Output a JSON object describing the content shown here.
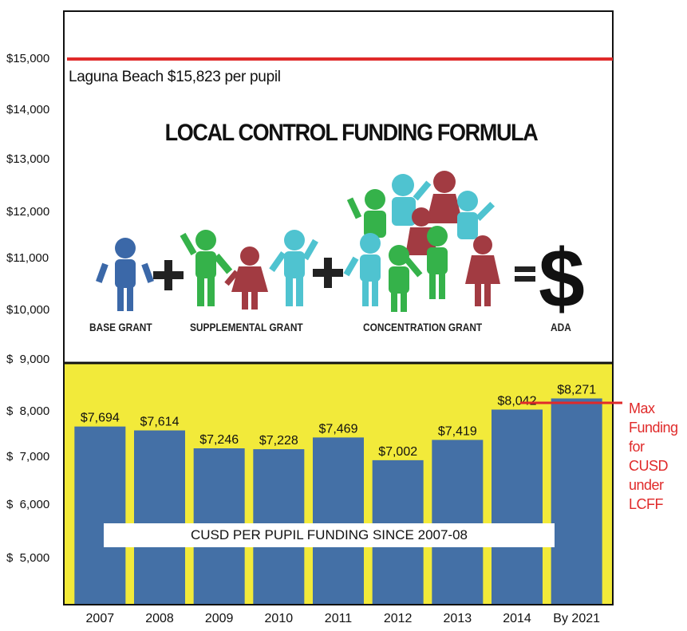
{
  "chart_data": {
    "type": "bar",
    "title": "CUSD PER PUPIL FUNDING SINCE 2007-08",
    "categories": [
      "2007",
      "2008",
      "2009",
      "2010",
      "2011",
      "2012",
      "2013",
      "2014",
      "By 2021"
    ],
    "values": [
      7694,
      7614,
      7246,
      7228,
      7469,
      7002,
      7419,
      8042,
      8271
    ],
    "value_labels": [
      "$7,694",
      "$7,614",
      "$7,246",
      "$7,228",
      "$7,469",
      "$7,002",
      "$7,419",
      "$8,042",
      "$8,271"
    ],
    "y_ticks": [
      {
        "value": 15000,
        "label": "$15,000"
      },
      {
        "value": 14000,
        "label": "$14,000"
      },
      {
        "value": 13000,
        "label": "$13,000"
      },
      {
        "value": 12000,
        "label": "$12,000"
      },
      {
        "value": 11000,
        "label": "$11,000"
      },
      {
        "value": 10000,
        "label": "$10,000"
      },
      {
        "value": 9000,
        "label": "$  9,000"
      },
      {
        "value": 8000,
        "label": "$  8,000"
      },
      {
        "value": 7000,
        "label": "$  7,000"
      },
      {
        "value": 6000,
        "label": "$  6,000"
      },
      {
        "value": 5000,
        "label": "$  5,000"
      }
    ],
    "reference_lines": [
      {
        "value": 15823,
        "label": "Laguna Beach $15,823 per pupil",
        "color": "#e02a2a"
      },
      {
        "value": 8271,
        "label": "Max Funding for CUSD under LCFF",
        "label_lines": [
          "Max",
          "Funding",
          "for CUSD",
          "under",
          "LCFF"
        ],
        "color": "#e02a2a"
      }
    ],
    "colors": {
      "bar": "#4470a6",
      "plot_background": "#f2ea3a",
      "reference": "#e02a2a",
      "frame": "#111111"
    },
    "grid": false
  },
  "infographic": {
    "title": "LOCAL CONTROL FUNDING FORMULA",
    "labels": [
      "BASE GRANT",
      "SUPPLEMENTAL GRANT",
      "CONCENTRATION GRANT",
      "ADA"
    ],
    "symbols": {
      "plus": "+",
      "equals": "=",
      "dollar": "$"
    },
    "figure_colors": {
      "blue": "#3b68a8",
      "green": "#35b24a",
      "red": "#a23b42",
      "cyan": "#4fc3d0"
    }
  }
}
